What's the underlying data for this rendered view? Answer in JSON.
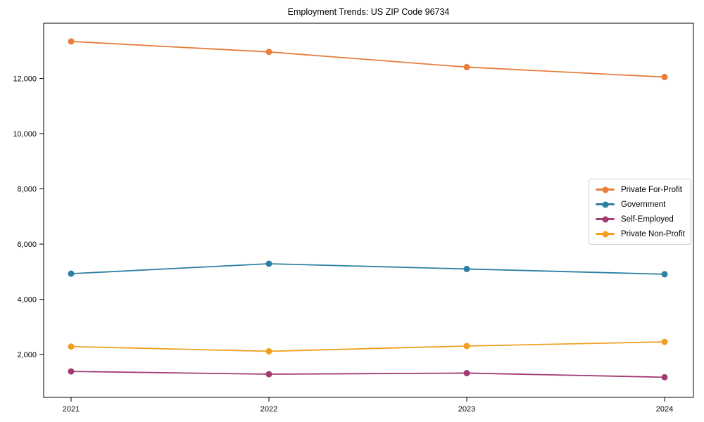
{
  "title": "Employment Trends: US ZIP Code 96734",
  "chart_data": {
    "type": "line",
    "x": [
      "2021",
      "2022",
      "2023",
      "2024"
    ],
    "series": [
      {
        "name": "Private For-Profit",
        "color": "#e87d3c",
        "values": [
          13340,
          12960,
          12410,
          12050
        ]
      },
      {
        "name": "Government",
        "color": "#2e7fa3",
        "values": [
          4930,
          5290,
          5100,
          4910
        ]
      },
      {
        "name": "Self-Employed",
        "color": "#a23b72",
        "values": [
          1390,
          1290,
          1330,
          1180
        ]
      },
      {
        "name": "Private Non-Profit",
        "color": "#efa021",
        "values": [
          2290,
          2120,
          2310,
          2460
        ]
      }
    ],
    "yticks": [
      2000,
      4000,
      6000,
      8000,
      10000,
      12000
    ],
    "ytick_labels": [
      "2,000",
      "4,000",
      "6,000",
      "8,000",
      "10,000",
      "12,000"
    ],
    "ylim": [
      450,
      14000
    ],
    "xlabel": "",
    "ylabel": "",
    "grid": false,
    "legend_position": "center-right",
    "frame": true
  }
}
